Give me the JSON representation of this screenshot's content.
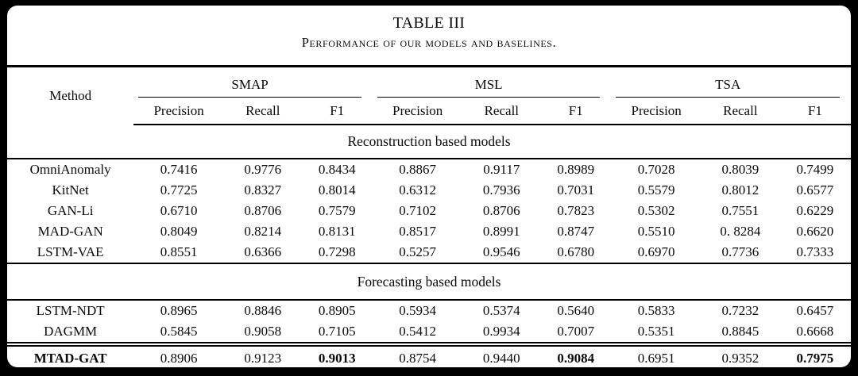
{
  "title": "TABLE III",
  "caption": "Performance of our models and baselines.",
  "colors": {
    "background": "#000000",
    "card": "#ffffff",
    "text": "#0a0a0a",
    "rule": "#000000"
  },
  "table": {
    "method_header": "Method",
    "groups": [
      {
        "label": "SMAP",
        "columns": [
          "Precision",
          "Recall",
          "F1"
        ]
      },
      {
        "label": "MSL",
        "columns": [
          "Precision",
          "Recall",
          "F1"
        ]
      },
      {
        "label": "TSA",
        "columns": [
          "Precision",
          "Recall",
          "F1"
        ]
      }
    ],
    "sections": [
      {
        "label": "Reconstruction based models",
        "rows": [
          {
            "method": "OmniAnomaly",
            "values": [
              "0.7416",
              "0.9776",
              "0.8434",
              "0.8867",
              "0.9117",
              "0.8989",
              "0.7028",
              "0.8039",
              "0.7499"
            ]
          },
          {
            "method": "KitNet",
            "values": [
              "0.7725",
              "0.8327",
              "0.8014",
              "0.6312",
              "0.7936",
              "0.7031",
              "0.5579",
              "0.8012",
              "0.6577"
            ]
          },
          {
            "method": "GAN-Li",
            "values": [
              "0.6710",
              "0.8706",
              "0.7579",
              "0.7102",
              "0.8706",
              "0.7823",
              "0.5302",
              "0.7551",
              "0.6229"
            ]
          },
          {
            "method": "MAD-GAN",
            "values": [
              "0.8049",
              "0.8214",
              "0.8131",
              "0.8517",
              "0.8991",
              "0.8747",
              "0.5510",
              "0. 8284",
              "0.6620"
            ]
          },
          {
            "method": "LSTM-VAE",
            "values": [
              "0.8551",
              "0.6366",
              "0.7298",
              "0.5257",
              "0.9546",
              "0.6780",
              "0.6970",
              "0.7736",
              "0.7333"
            ]
          }
        ]
      },
      {
        "label": "Forecasting based models",
        "rows": [
          {
            "method": "LSTM-NDT",
            "values": [
              "0.8965",
              "0.8846",
              "0.8905",
              "0.5934",
              "0.5374",
              "0.5640",
              "0.5833",
              "0.7232",
              "0.6457"
            ]
          },
          {
            "method": "DAGMM",
            "values": [
              "0.5845",
              "0.9058",
              "0.7105",
              "0.5412",
              "0.9934",
              "0.7007",
              "0.5351",
              "0.8845",
              "0.6668"
            ]
          }
        ]
      }
    ],
    "final_row": {
      "method": "MTAD-GAT",
      "bold_method": true,
      "values": [
        "0.8906",
        "0.9123",
        "0.9013",
        "0.8754",
        "0.9440",
        "0.9084",
        "0.6951",
        "0.9352",
        "0.7975"
      ],
      "bold_value_indices": [
        2,
        5,
        8
      ]
    }
  }
}
